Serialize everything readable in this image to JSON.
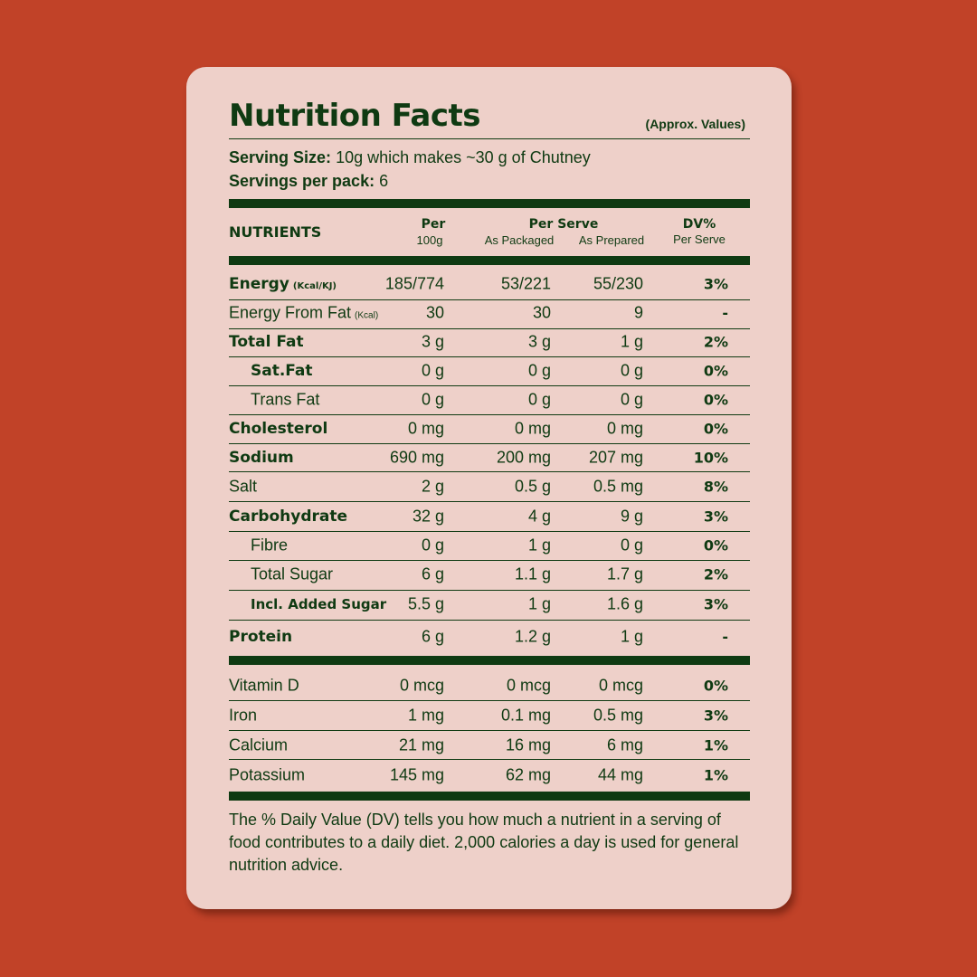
{
  "title": "Nutrition Facts",
  "approx": "(Approx. Values)",
  "serving_size_label": "Serving Size:",
  "serving_size_value": "10g which makes ~30 g of Chutney",
  "servings_label": "Servings per pack:",
  "servings_value": "6",
  "header": {
    "nutrients": "NUTRIENTS",
    "per": "Per",
    "per_sub": "100g",
    "per_serve": "Per Serve",
    "as_packaged": "As Packaged",
    "as_prepared": "As Prepared",
    "dv": "DV%",
    "dv_sub": "Per Serve"
  },
  "rows": [
    {
      "name": "Energy",
      "unit": "(Kcal/KJ)",
      "per100": "185/774",
      "packaged": "53/221",
      "prepared": "55/230",
      "dv": "3%"
    },
    {
      "name": "Energy From Fat",
      "unit": "(Kcal)",
      "per100": "30",
      "packaged": "30",
      "prepared": "9",
      "dv": "-"
    },
    {
      "name": "Total Fat",
      "per100": "3 g",
      "packaged": "3 g",
      "prepared": "1 g",
      "dv": "2%"
    },
    {
      "name": "Sat.Fat",
      "per100": "0 g",
      "packaged": "0 g",
      "prepared": "0 g",
      "dv": "0%"
    },
    {
      "name": "Trans Fat",
      "per100": "0 g",
      "packaged": "0 g",
      "prepared": "0 g",
      "dv": "0%"
    },
    {
      "name": "Cholesterol",
      "per100": "0 mg",
      "packaged": "0 mg",
      "prepared": "0 mg",
      "dv": "0%"
    },
    {
      "name": "Sodium",
      "per100": "690 mg",
      "packaged": "200 mg",
      "prepared": "207 mg",
      "dv": "10%"
    },
    {
      "name": "Salt",
      "per100": "2 g",
      "packaged": "0.5 g",
      "prepared": "0.5 mg",
      "dv": "8%"
    },
    {
      "name": "Carbohydrate",
      "per100": "32 g",
      "packaged": "4 g",
      "prepared": "9 g",
      "dv": "3%"
    },
    {
      "name": "Fibre",
      "per100": "0 g",
      "packaged": "1 g",
      "prepared": "0 g",
      "dv": "0%"
    },
    {
      "name": "Total Sugar",
      "per100": "6 g",
      "packaged": "1.1 g",
      "prepared": "1.7 g",
      "dv": "2%"
    },
    {
      "name": "Incl. Added Sugar",
      "per100": "5.5 g",
      "packaged": "1 g",
      "prepared": "1.6 g",
      "dv": "3%"
    },
    {
      "name": "Protein",
      "per100": "6 g",
      "packaged": "1.2 g",
      "prepared": "1 g",
      "dv": "-"
    }
  ],
  "vitamins": [
    {
      "name": "Vitamin D",
      "per100": "0 mcg",
      "packaged": "0 mcg",
      "prepared": "0 mcg",
      "dv": "0%"
    },
    {
      "name": "Iron",
      "per100": "1 mg",
      "packaged": "0.1 mg",
      "prepared": "0.5 mg",
      "dv": "3%"
    },
    {
      "name": "Calcium",
      "per100": "21 mg",
      "packaged": "16 mg",
      "prepared": "6 mg",
      "dv": "1%"
    },
    {
      "name": "Potassium",
      "per100": "145 mg",
      "packaged": "62 mg",
      "prepared": "44 mg",
      "dv": "1%"
    }
  ],
  "footer": "The % Daily Value (DV) tells you how much a nutrient in a serving of food contributes to a daily diet. 2,000 calories a day is used for general nutrition advice."
}
